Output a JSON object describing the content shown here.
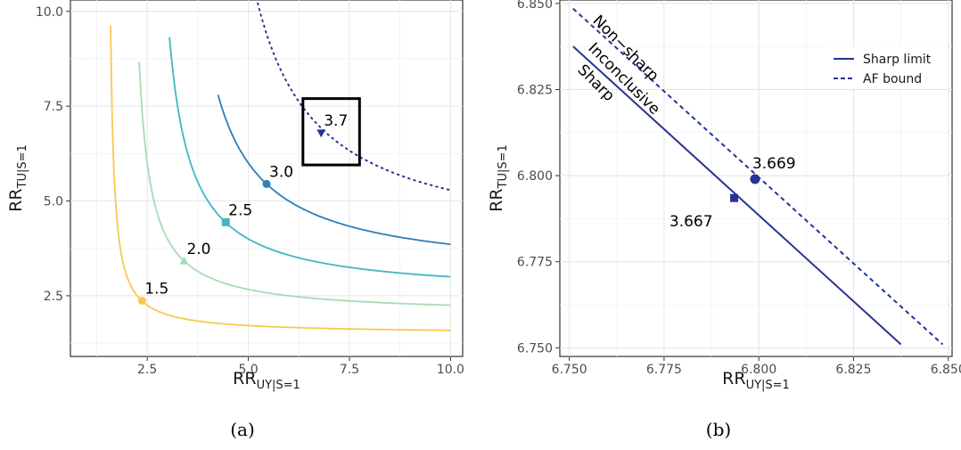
{
  "chart_data": [
    {
      "panel_caption": "(a)",
      "type": "line",
      "xlabel": {
        "main": "RR",
        "sub": "UY|S=1"
      },
      "ylabel": {
        "main": "RR",
        "sub": "TU|S=1"
      },
      "xlim": [
        0.6,
        10.3
      ],
      "ylim": [
        0.9,
        10.3
      ],
      "xticks": [
        2.5,
        5.0,
        7.5,
        10.0
      ],
      "yticks": [
        2.5,
        5.0,
        7.5,
        10.0
      ],
      "xtick_labels": [
        "2.5",
        "5.0",
        "7.5",
        "10.0"
      ],
      "ytick_labels": [
        "2.5",
        "5.0",
        "7.5",
        "10.0"
      ],
      "grid": true,
      "curves": [
        {
          "bound": 1.5,
          "color": "#f9c74f",
          "style": "solid",
          "x_start": 1.55,
          "x_end": 10.0,
          "marker": "circle",
          "marker_point": [
            2.37,
            2.37
          ],
          "label": "1.5"
        },
        {
          "bound": 2.0,
          "color": "#a6dcb3",
          "style": "solid",
          "x_start": 2.3,
          "x_end": 10.0,
          "marker": "triangle",
          "marker_point": [
            3.41,
            3.41
          ],
          "label": "2.0"
        },
        {
          "bound": 2.5,
          "color": "#41b6c4",
          "style": "solid",
          "x_start": 3.05,
          "x_end": 10.0,
          "marker": "square",
          "marker_point": [
            4.44,
            4.44
          ],
          "label": "2.5"
        },
        {
          "bound": 3.0,
          "color": "#2c7fb8",
          "style": "solid",
          "x_start": 4.25,
          "x_end": 10.0,
          "marker": "circle",
          "marker_point": [
            5.45,
            5.45
          ],
          "label": "3.0"
        },
        {
          "bound": 3.7,
          "color": "#253494",
          "style": "dotted",
          "x_start": 5.2,
          "x_end": 10.0,
          "marker": "triangle-down",
          "marker_point": [
            6.8,
            6.8
          ],
          "label": "3.7"
        }
      ],
      "highlight_box": {
        "x": [
          6.35,
          7.75
        ],
        "y": [
          5.95,
          7.7
        ]
      }
    },
    {
      "panel_caption": "(b)",
      "type": "line",
      "xlabel": {
        "main": "RR",
        "sub": "UY|S=1"
      },
      "ylabel": {
        "main": "RR",
        "sub": "TU|S=1"
      },
      "xlim": [
        6.7475,
        6.851
      ],
      "ylim": [
        6.7475,
        6.851
      ],
      "xticks": [
        6.75,
        6.775,
        6.8,
        6.825,
        6.85
      ],
      "yticks": [
        6.75,
        6.775,
        6.8,
        6.825,
        6.85
      ],
      "xtick_labels": [
        "6.750",
        "6.775",
        "6.800",
        "6.825",
        "6.850"
      ],
      "ytick_labels": [
        "6.750",
        "6.775",
        "6.800",
        "6.825",
        "6.850"
      ],
      "grid": true,
      "series": [
        {
          "name": "Sharp limit",
          "style": "solid",
          "color": "#253494",
          "x": [
            6.751,
            6.8375
          ],
          "y": [
            6.8375,
            6.751
          ]
        },
        {
          "name": "AF bound",
          "style": "dashed",
          "color": "#253494",
          "x": [
            6.751,
            6.8485
          ],
          "y": [
            6.8485,
            6.751
          ]
        }
      ],
      "points": [
        {
          "x": 6.7935,
          "y": 6.7935,
          "marker": "square",
          "label": "3.667"
        },
        {
          "x": 6.799,
          "y": 6.799,
          "marker": "circle",
          "label": "3.669"
        }
      ],
      "region_labels": [
        "Non−sharp",
        "Inconclusive",
        "Sharp"
      ],
      "legend": {
        "position": "top-right",
        "entries": [
          "Sharp limit",
          "AF bound"
        ]
      }
    }
  ]
}
